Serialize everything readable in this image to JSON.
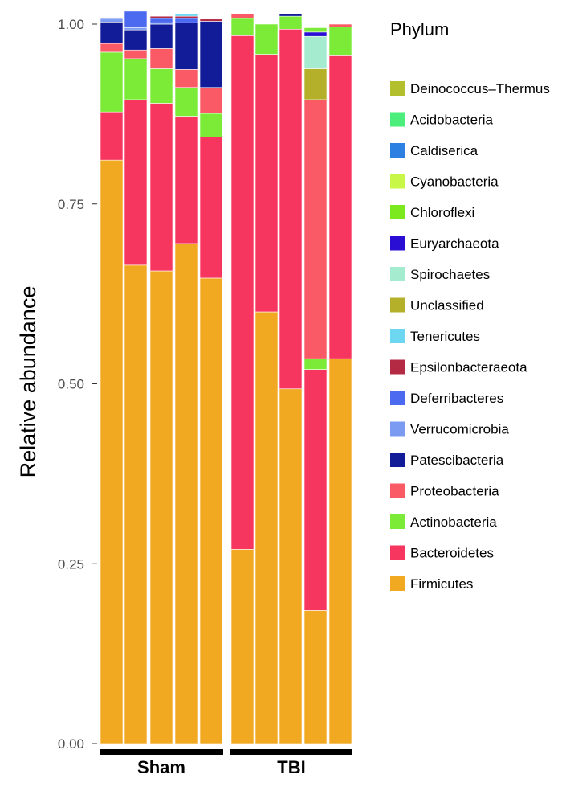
{
  "chart_data": {
    "type": "bar",
    "stacked": true,
    "ylabel": "Relative abundance",
    "ylim": [
      0,
      1
    ],
    "yticks": [
      "0.00",
      "0.25",
      "0.50",
      "0.75",
      "1.00"
    ],
    "yticks_values": [
      0,
      0.25,
      0.5,
      0.75,
      1.0
    ],
    "groups": [
      {
        "label": "Sham",
        "samples": 5
      },
      {
        "label": "TBI",
        "samples": 5
      }
    ],
    "legend_title": "Phylum",
    "legend_position": "right",
    "series": [
      {
        "name": "Firmicutes",
        "color": "#F2A922",
        "values": [
          0.811,
          0.665,
          0.657,
          0.695,
          0.647,
          0.27,
          0.6,
          0.493,
          0.185,
          0.535
        ]
      },
      {
        "name": "Bacteroidetes",
        "color": "#F7365F",
        "values": [
          0.067,
          0.23,
          0.233,
          0.177,
          0.196,
          0.714,
          0.358,
          0.5,
          0.335,
          0.421
        ]
      },
      {
        "name": "Actinobacteria",
        "color": "#7CEB37",
        "values": [
          0.083,
          0.057,
          0.048,
          0.04,
          0.033,
          0.0,
          0.0,
          0.0,
          0.015,
          0.0
        ]
      },
      {
        "name": "Proteobacteria",
        "color": "#FA5A66",
        "values": [
          0.012,
          0.012,
          0.028,
          0.025,
          0.036,
          0.0,
          0.0,
          0.0,
          0.36,
          0.0
        ]
      },
      {
        "name": "Patescibacteria",
        "color": "#121C98",
        "values": [
          0.03,
          0.028,
          0.034,
          0.065,
          0.092,
          0.0,
          0.0,
          0.0,
          0.0,
          0.0
        ]
      },
      {
        "name": "Verrucomicrobia",
        "color": "#7B9BF3",
        "values": [
          0.004,
          0.003,
          0.002,
          0.0,
          0.0,
          0.0,
          0.0,
          0.0,
          0.0,
          0.0
        ]
      },
      {
        "name": "Deferribacteres",
        "color": "#4C6AF0",
        "values": [
          0.002,
          0.023,
          0.006,
          0.006,
          0.0,
          0.0,
          0.0,
          0.0,
          0.0,
          0.0
        ]
      },
      {
        "name": "Epsilonbacteraeota",
        "color": "#B42A45",
        "values": [
          0.0,
          0.0,
          0.003,
          0.003,
          0.003,
          0.0,
          0.0,
          0.0,
          0.0,
          0.0
        ]
      },
      {
        "name": "Tenericutes",
        "color": "#6DD6F0",
        "values": [
          0.0,
          0.0,
          0.0,
          0.003,
          0.0,
          0.0,
          0.0,
          0.0,
          0.0,
          0.0
        ]
      },
      {
        "name": "Unclassified",
        "color": "#B4B029",
        "values": [
          0.0,
          0.0,
          0.0,
          0.0,
          0.0,
          0.0,
          0.0,
          0.0,
          0.043,
          0.0
        ]
      },
      {
        "name": "Spirochaetes",
        "color": "#A5EBD0",
        "values": [
          0.0,
          0.0,
          0.0,
          0.0,
          0.0,
          0.0,
          0.0,
          0.0,
          0.045,
          0.0
        ]
      },
      {
        "name": "Euryarchaeota",
        "color": "#2B0ED3",
        "values": [
          0.0,
          0.0,
          0.0,
          0.0,
          0.0,
          0.0,
          0.0,
          0.0,
          0.006,
          0.0
        ]
      },
      {
        "name": "Chloroflexi",
        "color": "#7CE81E",
        "values": [
          0.0,
          0.0,
          0.0,
          0.0,
          0.0,
          0.0,
          0.0,
          0.0,
          0.0,
          0.0
        ]
      },
      {
        "name": "Cyanobacteria",
        "color": "#C9F748",
        "values": [
          0.0,
          0.0,
          0.0,
          0.0,
          0.0,
          0.0,
          0.0,
          0.0,
          0.0,
          0.0
        ]
      },
      {
        "name": "Caldiserica",
        "color": "#2C80E2",
        "values": [
          0.0,
          0.0,
          0.0,
          0.0,
          0.0,
          0.0,
          0.0,
          0.0,
          0.0,
          0.0
        ]
      },
      {
        "name": "Acidobacteria",
        "color": "#4BEE7A",
        "values": [
          0.0,
          0.0,
          0.0,
          0.0,
          0.0,
          0.0,
          0.0,
          0.0,
          0.0,
          0.0
        ]
      },
      {
        "name": "Deinococcus–Thermus",
        "color": "#B3BF2C",
        "values": [
          0.0,
          0.0,
          0.0,
          0.0,
          0.0,
          0.0,
          0.0,
          0.0,
          0.0,
          0.0
        ]
      }
    ],
    "extra_bands": [
      {
        "sample": 5,
        "color": "#7CEB37",
        "value": 0.024
      },
      {
        "sample": 5,
        "color": "#FA5A66",
        "value": 0.006
      },
      {
        "sample": 6,
        "color": "#7CEB37",
        "value": 0.042
      },
      {
        "sample": 7,
        "color": "#7CEB37",
        "value": 0.018
      },
      {
        "sample": 7,
        "color": "#121C98",
        "value": 0.003
      },
      {
        "sample": 8,
        "color": "#7CEB37",
        "value": 0.006
      },
      {
        "sample": 9,
        "color": "#7CEB37",
        "value": 0.04
      },
      {
        "sample": 9,
        "color": "#FA5A66",
        "value": 0.004
      }
    ],
    "legend_order": [
      "Deinococcus–Thermus",
      "Acidobacteria",
      "Caldiserica",
      "Cyanobacteria",
      "Chloroflexi",
      "Euryarchaeota",
      "Spirochaetes",
      "Unclassified",
      "Tenericutes",
      "Epsilonbacteraeota",
      "Deferribacteres",
      "Verrucomicrobia",
      "Patescibacteria",
      "Proteobacteria",
      "Actinobacteria",
      "Bacteroidetes",
      "Firmicutes"
    ]
  }
}
